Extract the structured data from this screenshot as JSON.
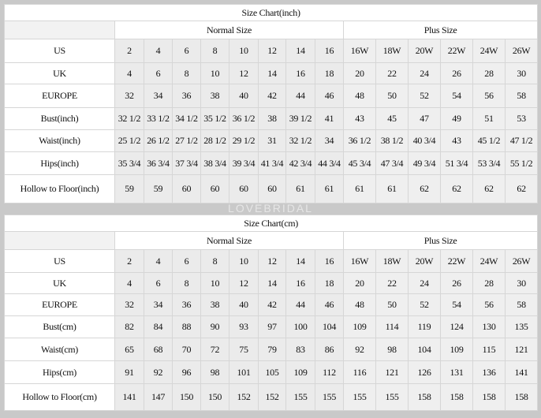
{
  "watermark": "LOVEBRIDAL",
  "tables": [
    {
      "title": "Size Chart(inch)",
      "normal_label": "Normal Size",
      "plus_label": "Plus Size",
      "rows": [
        {
          "label": "US",
          "values": [
            "2",
            "4",
            "6",
            "8",
            "10",
            "12",
            "14",
            "16",
            "16W",
            "18W",
            "20W",
            "22W",
            "24W",
            "26W"
          ]
        },
        {
          "label": "UK",
          "values": [
            "4",
            "6",
            "8",
            "10",
            "12",
            "14",
            "16",
            "18",
            "20",
            "22",
            "24",
            "26",
            "28",
            "30"
          ]
        },
        {
          "label": "EUROPE",
          "values": [
            "32",
            "34",
            "36",
            "38",
            "40",
            "42",
            "44",
            "46",
            "48",
            "50",
            "52",
            "54",
            "56",
            "58"
          ]
        },
        {
          "label": "Bust(inch)",
          "values": [
            "32 1/2",
            "33 1/2",
            "34 1/2",
            "35 1/2",
            "36 1/2",
            "38",
            "39 1/2",
            "41",
            "43",
            "45",
            "47",
            "49",
            "51",
            "53"
          ]
        },
        {
          "label": "Waist(inch)",
          "values": [
            "25 1/2",
            "26 1/2",
            "27 1/2",
            "28 1/2",
            "29 1/2",
            "31",
            "32 1/2",
            "34",
            "36 1/2",
            "38 1/2",
            "40 3/4",
            "43",
            "45 1/2",
            "47 1/2"
          ]
        },
        {
          "label": "Hips(inch)",
          "values": [
            "35 3/4",
            "36 3/4",
            "37 3/4",
            "38 3/4",
            "39 3/4",
            "41 3/4",
            "42 3/4",
            "44 3/4",
            "45 3/4",
            "47 3/4",
            "49 3/4",
            "51 3/4",
            "53 3/4",
            "55 1/2"
          ]
        },
        {
          "label": "Hollow to Floor(inch)",
          "values": [
            "59",
            "59",
            "60",
            "60",
            "60",
            "60",
            "61",
            "61",
            "61",
            "61",
            "62",
            "62",
            "62",
            "62"
          ]
        }
      ]
    },
    {
      "title": "Size Chart(cm)",
      "normal_label": "Normal Size",
      "plus_label": "Plus Size",
      "rows": [
        {
          "label": "US",
          "values": [
            "2",
            "4",
            "6",
            "8",
            "10",
            "12",
            "14",
            "16",
            "16W",
            "18W",
            "20W",
            "22W",
            "24W",
            "26W"
          ]
        },
        {
          "label": "UK",
          "values": [
            "4",
            "6",
            "8",
            "10",
            "12",
            "14",
            "16",
            "18",
            "20",
            "22",
            "24",
            "26",
            "28",
            "30"
          ]
        },
        {
          "label": "EUROPE",
          "values": [
            "32",
            "34",
            "36",
            "38",
            "40",
            "42",
            "44",
            "46",
            "48",
            "50",
            "52",
            "54",
            "56",
            "58"
          ]
        },
        {
          "label": "Bust(cm)",
          "values": [
            "82",
            "84",
            "88",
            "90",
            "93",
            "97",
            "100",
            "104",
            "109",
            "114",
            "119",
            "124",
            "130",
            "135"
          ]
        },
        {
          "label": "Waist(cm)",
          "values": [
            "65",
            "68",
            "70",
            "72",
            "75",
            "79",
            "83",
            "86",
            "92",
            "98",
            "104",
            "109",
            "115",
            "121"
          ]
        },
        {
          "label": "Hips(cm)",
          "values": [
            "91",
            "92",
            "96",
            "98",
            "101",
            "105",
            "109",
            "112",
            "116",
            "121",
            "126",
            "131",
            "136",
            "141"
          ]
        },
        {
          "label": "Hollow to Floor(cm)",
          "values": [
            "141",
            "147",
            "150",
            "150",
            "152",
            "152",
            "155",
            "155",
            "155",
            "155",
            "158",
            "158",
            "158",
            "158"
          ]
        }
      ]
    }
  ]
}
